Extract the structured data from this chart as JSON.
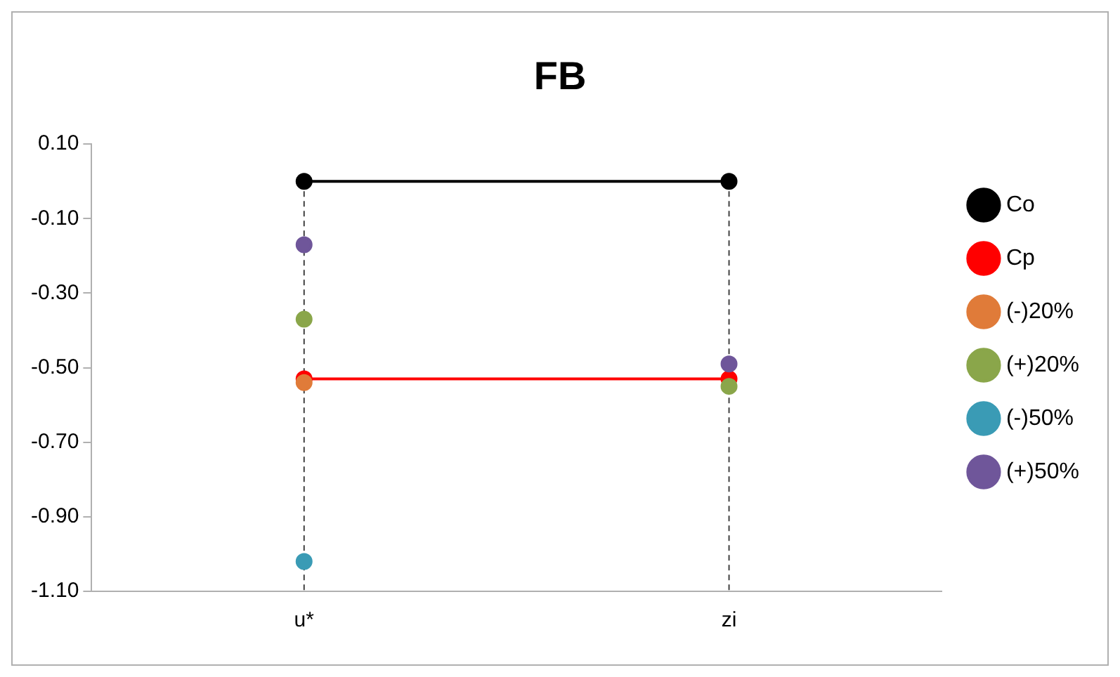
{
  "chart_data": {
    "type": "line",
    "title": "FB",
    "categories": [
      "u*",
      "zi"
    ],
    "series": [
      {
        "name": "Co",
        "color": "#000000",
        "values": [
          0.0,
          0.0
        ]
      },
      {
        "name": "Cp",
        "color": "#ff0000",
        "values": [
          -0.53,
          -0.53
        ]
      },
      {
        "name": "(-)20%",
        "type": "scatter",
        "color": "#e07b39",
        "values": [
          -0.54,
          null
        ]
      },
      {
        "name": "(+)20%",
        "type": "scatter",
        "color": "#8aa64a",
        "values": [
          -0.37,
          -0.55
        ]
      },
      {
        "name": "(-)50%",
        "type": "scatter",
        "color": "#3a9bb5",
        "values": [
          -1.02,
          null
        ]
      },
      {
        "name": "(+)50%",
        "type": "scatter",
        "color": "#6f569a",
        "values": [
          -0.17,
          -0.49
        ]
      }
    ],
    "ylim": [
      -1.1,
      0.1
    ],
    "yticks": [
      {
        "value": 0.1,
        "label": "0.10"
      },
      {
        "value": -0.1,
        "label": "-0.10"
      },
      {
        "value": -0.3,
        "label": "-0.30"
      },
      {
        "value": -0.5,
        "label": "-0.50"
      },
      {
        "value": -0.7,
        "label": "-0.70"
      },
      {
        "value": -0.9,
        "label": "-0.90"
      },
      {
        "value": -1.1,
        "label": "-1.10"
      }
    ],
    "ref_lines": [
      {
        "axis": "x",
        "value": "u*",
        "line_style": "dashed",
        "color": "#404040"
      },
      {
        "axis": "x",
        "value": "zi",
        "line_style": "dashed",
        "color": "#404040"
      }
    ],
    "grid": false,
    "legend": "right",
    "marker": "circle",
    "line_style": "solid"
  }
}
